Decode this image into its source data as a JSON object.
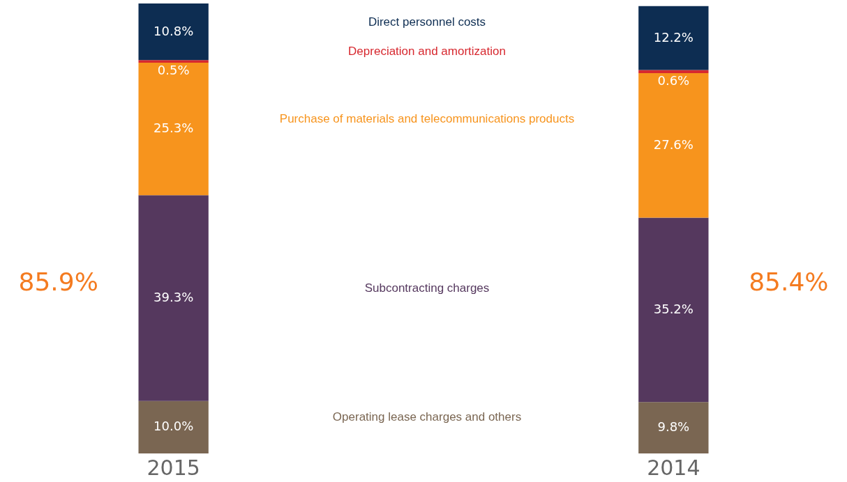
{
  "chart_data": {
    "type": "bar",
    "stacked": true,
    "categories": [
      "2015",
      "2014"
    ],
    "series": [
      {
        "name": "Operating lease charges and others",
        "color": "#7a6652",
        "values": [
          10.0,
          9.8
        ],
        "value_labels": [
          "10.0%",
          "9.8%"
        ]
      },
      {
        "name": "Subcontracting charges",
        "color": "#55385e",
        "values": [
          39.3,
          35.2
        ],
        "value_labels": [
          "39.3%",
          "35.2%"
        ]
      },
      {
        "name": "Purchase of materials and telecommunications products",
        "color": "#f7941d",
        "values": [
          25.3,
          27.6
        ],
        "value_labels": [
          "25.3%",
          "27.6%"
        ]
      },
      {
        "name": "Depreciation and amortization",
        "color": "#d7282f",
        "values": [
          0.5,
          0.6
        ],
        "value_labels": [
          "0.5%",
          "0.6%"
        ]
      },
      {
        "name": "Direct personnel costs",
        "color": "#0d2d52",
        "values": [
          10.8,
          12.2
        ],
        "value_labels": [
          "10.8%",
          "12.2%"
        ]
      }
    ],
    "totals": [
      "85.9%",
      "85.4%"
    ]
  }
}
